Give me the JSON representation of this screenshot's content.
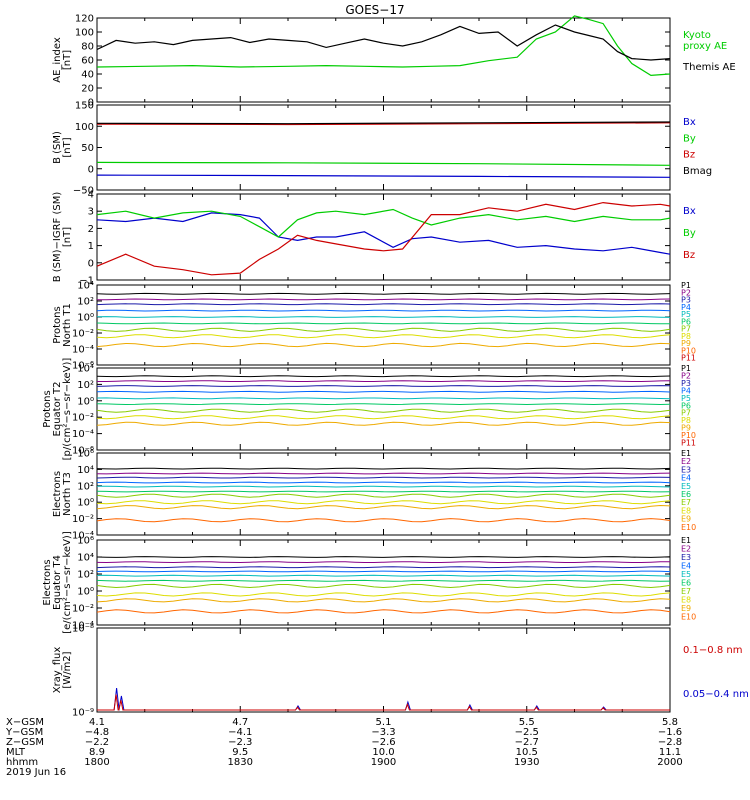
{
  "title": "GOES−17",
  "date_label": "2019 Jun 16",
  "colors": {
    "black": "#000000",
    "green": "#00cc00",
    "red": "#cc0000",
    "blue": "#0000cc",
    "ae_kyoto": "#00dd00",
    "p_channels": [
      "#000000",
      "#880088",
      "#1a1aa8",
      "#0066ff",
      "#00bbbb",
      "#00c864",
      "#88cc00",
      "#dddd00",
      "#eeaa00",
      "#ff6600",
      "#cc0000"
    ],
    "e_channels": [
      "#000000",
      "#880088",
      "#1a1aa8",
      "#0066ff",
      "#00bbbb",
      "#00c864",
      "#88cc00",
      "#dddd00",
      "#eeaa00",
      "#ff6600",
      "#cc0000"
    ]
  },
  "chart_data": [
    {
      "type": "line",
      "ylabel": "AE_index\n[nT]",
      "ylim": [
        0,
        120
      ],
      "yticks": [
        "0",
        "20",
        "40",
        "60",
        "80",
        "100",
        "120"
      ],
      "xlim": [
        0,
        120
      ],
      "series": [
        {
          "name": "Kyoto\nproxy AE",
          "color": "green",
          "x": [
            0,
            10,
            20,
            30,
            40,
            48,
            56,
            64,
            70,
            76,
            82,
            88,
            92,
            96,
            100,
            103,
            106,
            109,
            112,
            116,
            120
          ],
          "y": [
            50,
            51,
            52,
            50,
            51,
            52,
            51,
            50,
            51,
            52,
            59,
            64,
            90,
            100,
            123,
            118,
            112,
            80,
            55,
            38,
            40
          ]
        },
        {
          "name": "Themis AE",
          "color": "black",
          "x": [
            0,
            4,
            8,
            12,
            16,
            20,
            24,
            28,
            32,
            36,
            40,
            44,
            48,
            52,
            56,
            60,
            64,
            68,
            72,
            76,
            80,
            84,
            88,
            92,
            96,
            100,
            103,
            106,
            109,
            112,
            116,
            120
          ],
          "y": [
            75,
            88,
            84,
            86,
            82,
            88,
            90,
            92,
            85,
            90,
            88,
            86,
            78,
            84,
            90,
            84,
            80,
            86,
            96,
            108,
            98,
            100,
            80,
            96,
            110,
            100,
            95,
            90,
            72,
            62,
            60,
            62
          ]
        }
      ]
    },
    {
      "type": "line",
      "ylabel": "B (SM)\n[nT]",
      "ylim": [
        -50,
        150
      ],
      "yticks": [
        "−50",
        "0",
        "50",
        "100",
        "150"
      ],
      "xlim": [
        0,
        120
      ],
      "series": [
        {
          "name": "Bx",
          "color": "blue",
          "x": [
            0,
            40,
            80,
            120
          ],
          "y": [
            -15,
            -16,
            -18,
            -20
          ]
        },
        {
          "name": "By",
          "color": "green",
          "x": [
            0,
            40,
            80,
            120
          ],
          "y": [
            15,
            14,
            12,
            8
          ]
        },
        {
          "name": "Bz",
          "color": "red",
          "x": [
            0,
            40,
            80,
            120
          ],
          "y": [
            105,
            104,
            106,
            108
          ]
        },
        {
          "name": "Bmag",
          "color": "black",
          "x": [
            0,
            40,
            80,
            120
          ],
          "y": [
            107,
            106,
            108,
            110
          ]
        }
      ]
    },
    {
      "type": "line",
      "ylabel": "B (SM)−IGRF (SM)\n[nT]",
      "ylim": [
        -1,
        4
      ],
      "yticks": [
        "−1",
        "0",
        "1",
        "2",
        "3",
        "4"
      ],
      "xlim": [
        0,
        120
      ],
      "series": [
        {
          "name": "Bx",
          "color": "blue",
          "x": [
            0,
            6,
            12,
            18,
            24,
            30,
            34,
            38,
            42,
            46,
            50,
            56,
            62,
            66,
            70,
            76,
            82,
            88,
            94,
            100,
            106,
            112,
            118,
            120
          ],
          "y": [
            2.5,
            2.4,
            2.6,
            2.4,
            2.9,
            2.8,
            2.6,
            1.5,
            1.3,
            1.5,
            1.5,
            1.8,
            0.9,
            1.4,
            1.5,
            1.2,
            1.3,
            0.9,
            1.0,
            0.8,
            0.7,
            0.9,
            0.6,
            0.5
          ]
        },
        {
          "name": "By",
          "color": "green",
          "x": [
            0,
            6,
            12,
            18,
            24,
            30,
            34,
            38,
            42,
            46,
            50,
            56,
            62,
            66,
            70,
            76,
            82,
            88,
            94,
            100,
            106,
            112,
            118,
            120
          ],
          "y": [
            2.8,
            3.0,
            2.6,
            2.9,
            3.0,
            2.7,
            2.1,
            1.5,
            2.5,
            2.9,
            3.0,
            2.8,
            3.1,
            2.6,
            2.2,
            2.6,
            2.8,
            2.5,
            2.7,
            2.4,
            2.7,
            2.5,
            2.5,
            2.6
          ]
        },
        {
          "name": "Bz",
          "color": "red",
          "x": [
            0,
            6,
            12,
            18,
            24,
            30,
            34,
            38,
            42,
            46,
            50,
            56,
            60,
            64,
            70,
            76,
            82,
            88,
            94,
            100,
            106,
            112,
            118,
            120
          ],
          "y": [
            -0.2,
            0.5,
            -0.2,
            -0.4,
            -0.7,
            -0.6,
            0.2,
            0.8,
            1.6,
            1.3,
            1.1,
            0.8,
            0.7,
            0.8,
            2.8,
            2.8,
            3.2,
            3.0,
            3.4,
            3.1,
            3.5,
            3.3,
            3.4,
            3.3
          ]
        }
      ]
    },
    {
      "type": "line",
      "ylabel": "Protons\nNorth T1",
      "ylim": [
        "1e-6",
        "1e4"
      ],
      "yticks": [
        "10⁻⁶",
        "10⁻⁴",
        "10⁻²",
        "10⁰",
        "10²",
        "10⁴"
      ],
      "legend": [
        "P1",
        "P2",
        "P3",
        "P4",
        "P5",
        "P6",
        "P7",
        "P8",
        "P9",
        "P10",
        "P11"
      ],
      "levels_log10": [
        2.9,
        2.2,
        1.6,
        0.8,
        0.0,
        -0.8,
        -1.6,
        -2.4,
        -3.5,
        null,
        null
      ]
    },
    {
      "type": "line",
      "ylabel": "Protons\nEquator T2\n[p/(cm²−s−sr−keV)]",
      "ylim": [
        "1e-6",
        "1e4"
      ],
      "yticks": [
        "10⁻⁶",
        "10⁻⁴",
        "10⁻²",
        "10⁰",
        "10²",
        "10⁴"
      ],
      "legend": [
        "P1",
        "P2",
        "P3",
        "P4",
        "P5",
        "P6",
        "P7",
        "P8",
        "P9",
        "P10",
        "P11"
      ],
      "levels_log10": [
        3.0,
        2.4,
        1.8,
        1.1,
        0.3,
        -0.4,
        -1.2,
        -2.0,
        -2.8,
        null,
        null
      ]
    },
    {
      "type": "line",
      "ylabel": "Electrons\nNorth T3",
      "ylim": [
        "1e-4",
        "1e6"
      ],
      "yticks": [
        "10⁻⁴",
        "10⁻²",
        "10⁰",
        "10²",
        "10⁴",
        "10⁶"
      ],
      "legend": [
        "E1",
        "E2",
        "E3",
        "E4",
        "E5",
        "E6",
        "E7",
        "E8",
        "E9",
        "E10"
      ],
      "levels_log10": [
        4.1,
        3.5,
        3.0,
        2.4,
        1.9,
        1.3,
        0.8,
        0.0,
        -0.6,
        -2.2
      ]
    },
    {
      "type": "line",
      "ylabel": "Electrons\nEquator T4\n[e/(cm²−s−sr−keV)]",
      "ylim": [
        "1e-4",
        "1e6"
      ],
      "yticks": [
        "10⁻⁴",
        "10⁻²",
        "10⁰",
        "10²",
        "10⁴",
        "10⁶"
      ],
      "legend": [
        "E1",
        "E2",
        "E3",
        "E4",
        "E5",
        "E6",
        "E7",
        "E8",
        "E9",
        "E10"
      ],
      "levels_log10": [
        4.0,
        3.4,
        2.8,
        2.3,
        1.8,
        1.2,
        0.6,
        -0.4,
        -1.1,
        -2.4
      ]
    },
    {
      "type": "line",
      "ylabel": "Xray_flux\n[W/m2]",
      "ylim": [
        "1e-9",
        "1e-8"
      ],
      "yticks": [
        "10⁻⁹",
        "10⁻⁸"
      ],
      "series": [
        {
          "name": "0.1−0.8 nm",
          "color": "red"
        },
        {
          "name": "0.05−0.4 nm",
          "color": "blue"
        }
      ]
    }
  ],
  "xaxis": {
    "row_labels": [
      "X−GSM",
      "Y−GSM",
      "Z−GSM",
      "MLT",
      "hhmm"
    ],
    "columns": [
      [
        "4.1",
        "−4.8",
        "−2.2",
        "8.9",
        "1800"
      ],
      [
        "4.7",
        "−4.1",
        "−2.3",
        "9.5",
        "1830"
      ],
      [
        "5.1",
        "−3.3",
        "−2.6",
        "10.0",
        "1900"
      ],
      [
        "5.5",
        "−2.5",
        "−2.7",
        "10.5",
        "1930"
      ],
      [
        "5.8",
        "−1.6",
        "−2.8",
        "11.1",
        "2000"
      ]
    ]
  }
}
